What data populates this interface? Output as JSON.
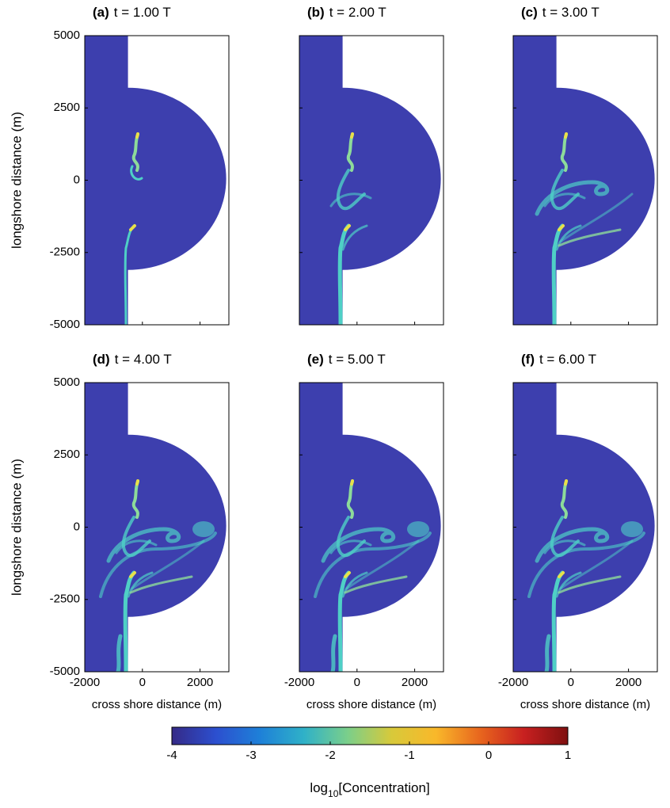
{
  "chart_data": [
    {
      "type": "heatmap",
      "panel": "(a)",
      "title": "t = 1.00 T",
      "ylabel": "longshore distance (m)",
      "xlim": [
        -2000,
        3000
      ],
      "ylim": [
        -5000,
        5000
      ],
      "xticks": [
        -2000,
        0,
        2000
      ],
      "yticks": [
        -5000,
        -2500,
        0,
        2500,
        5000
      ]
    },
    {
      "type": "heatmap",
      "panel": "(b)",
      "title": "t = 2.00 T",
      "xlim": [
        -2000,
        3000
      ],
      "ylim": [
        -5000,
        5000
      ],
      "xticks": [
        -2000,
        0,
        2000
      ],
      "yticks": [
        -5000,
        -2500,
        0,
        2500,
        5000
      ]
    },
    {
      "type": "heatmap",
      "panel": "(c)",
      "title": "t = 3.00 T",
      "xlim": [
        -2000,
        3000
      ],
      "ylim": [
        -5000,
        5000
      ],
      "xticks": [
        -2000,
        0,
        2000
      ],
      "yticks": [
        -5000,
        -2500,
        0,
        2500,
        5000
      ]
    },
    {
      "type": "heatmap",
      "panel": "(d)",
      "title": "t = 4.00 T",
      "ylabel": "longshore distance (m)",
      "xlabel": "cross shore distance (m)",
      "xlim": [
        -2000,
        3000
      ],
      "ylim": [
        -5000,
        5000
      ],
      "xticks": [
        -2000,
        0,
        2000
      ],
      "yticks": [
        -5000,
        -2500,
        0,
        2500,
        5000
      ]
    },
    {
      "type": "heatmap",
      "panel": "(e)",
      "title": "t = 5.00 T",
      "xlabel": "cross shore distance (m)",
      "xlim": [
        -2000,
        3000
      ],
      "ylim": [
        -5000,
        5000
      ],
      "xticks": [
        -2000,
        0,
        2000
      ],
      "yticks": [
        -5000,
        -2500,
        0,
        2500,
        5000
      ]
    },
    {
      "type": "heatmap",
      "panel": "(f)",
      "title": "t = 6.00 T",
      "xlabel": "cross shore distance (m)",
      "xlim": [
        -2000,
        3000
      ],
      "ylim": [
        -5000,
        5000
      ],
      "xticks": [
        -2000,
        0,
        2000
      ],
      "yticks": [
        -5000,
        -2500,
        0,
        2500,
        5000
      ]
    }
  ],
  "colorbar": {
    "label_parts": [
      "log",
      "10",
      "[Concentration]"
    ],
    "clim": [
      -4,
      1
    ],
    "ticks": [
      -4,
      -3,
      -2,
      -1,
      0,
      1
    ],
    "colormap": [
      "#352a87",
      "#2c4fcf",
      "#1e80d8",
      "#2fb1c8",
      "#7bcf8a",
      "#d8c93a",
      "#f9b82a",
      "#e8661e",
      "#c82020",
      "#7f1010"
    ]
  }
}
